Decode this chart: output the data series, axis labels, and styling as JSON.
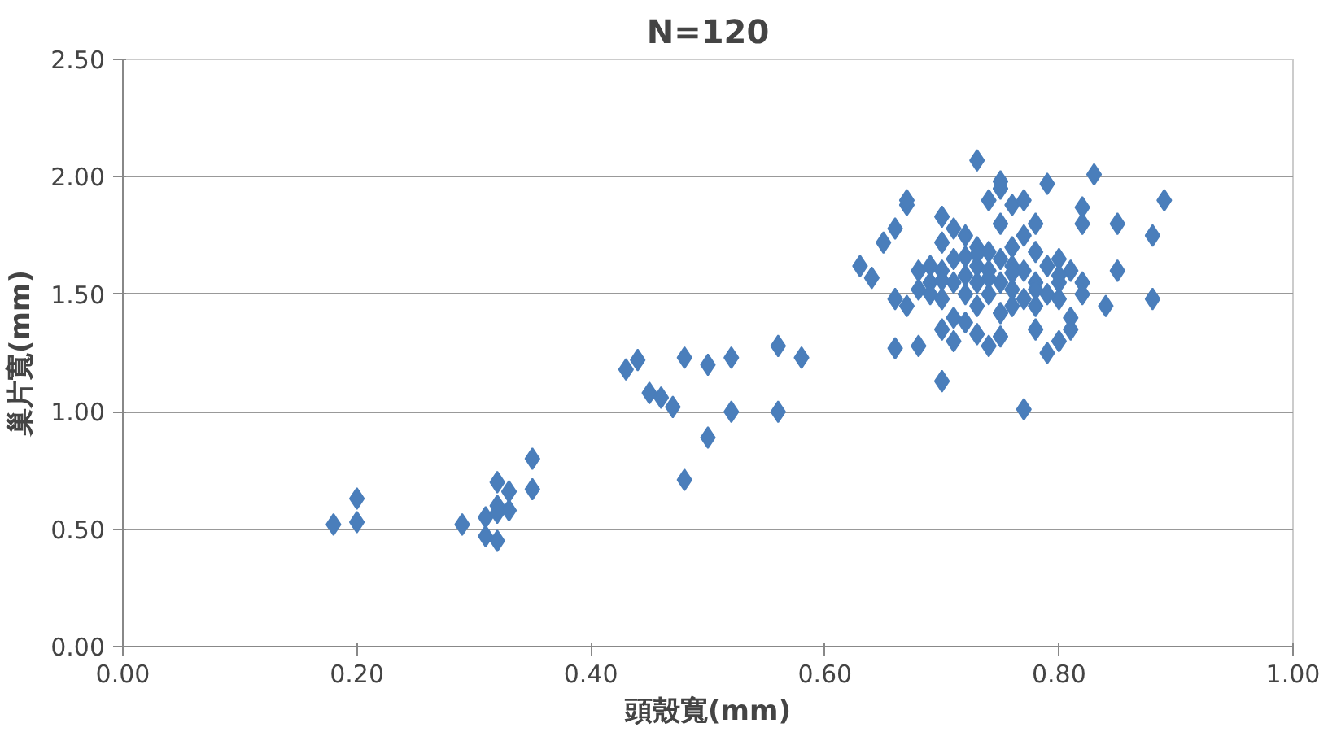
{
  "chart_data": {
    "type": "scatter",
    "title": "N=120",
    "xlabel": "頭殼寬(mm)",
    "ylabel": "巢片寬(mm)",
    "xlim": [
      0,
      1
    ],
    "ylim": [
      0,
      2.5
    ],
    "xticks": [
      {
        "value": 0,
        "label": "0.00"
      },
      {
        "value": 0.2,
        "label": "0.20"
      },
      {
        "value": 0.4,
        "label": "0.40"
      },
      {
        "value": 0.6,
        "label": "0.60"
      },
      {
        "value": 0.8,
        "label": "0.80"
      },
      {
        "value": 1,
        "label": "1.00"
      }
    ],
    "yticks": [
      {
        "value": 0,
        "label": "0.00"
      },
      {
        "value": 0.5,
        "label": "0.50"
      },
      {
        "value": 1,
        "label": "1.00"
      },
      {
        "value": 1.5,
        "label": "1.50"
      },
      {
        "value": 2,
        "label": "2.00"
      },
      {
        "value": 2.5,
        "label": "2.50"
      }
    ],
    "grid": "y",
    "marker": "diamond",
    "color": "#4a7ebb",
    "x": [
      0.18,
      0.2,
      0.2,
      0.29,
      0.31,
      0.32,
      0.31,
      0.32,
      0.32,
      0.33,
      0.33,
      0.35,
      0.35,
      0.32,
      0.43,
      0.44,
      0.45,
      0.46,
      0.47,
      0.48,
      0.5,
      0.52,
      0.48,
      0.5,
      0.52,
      0.56,
      0.58,
      0.56,
      0.63,
      0.64,
      0.65,
      0.66,
      0.67,
      0.67,
      0.66,
      0.66,
      0.68,
      0.67,
      0.68,
      0.68,
      0.69,
      0.69,
      0.7,
      0.7,
      0.7,
      0.7,
      0.7,
      0.7,
      0.71,
      0.71,
      0.71,
      0.71,
      0.72,
      0.72,
      0.72,
      0.72,
      0.73,
      0.73,
      0.73,
      0.73,
      0.73,
      0.73,
      0.74,
      0.74,
      0.74,
      0.74,
      0.75,
      0.75,
      0.75,
      0.75,
      0.75,
      0.75,
      0.75,
      0.76,
      0.76,
      0.76,
      0.76,
      0.77,
      0.77,
      0.77,
      0.77,
      0.77,
      0.78,
      0.78,
      0.78,
      0.78,
      0.79,
      0.79,
      0.79,
      0.79,
      0.8,
      0.8,
      0.8,
      0.81,
      0.81,
      0.81,
      0.82,
      0.82,
      0.82,
      0.82,
      0.83,
      0.84,
      0.85,
      0.85,
      0.88,
      0.88,
      0.89,
      0.78,
      0.8,
      0.74,
      0.76,
      0.71,
      0.69,
      0.72,
      0.74,
      0.76,
      0.78,
      0.8,
      0.7,
      0.73
    ],
    "values": [
      0.52,
      0.53,
      0.63,
      0.52,
      0.47,
      0.45,
      0.55,
      0.6,
      0.7,
      0.58,
      0.66,
      0.8,
      0.67,
      0.57,
      1.18,
      1.22,
      1.08,
      1.06,
      1.02,
      1.23,
      1.2,
      1.23,
      0.71,
      0.89,
      1.0,
      1.28,
      1.23,
      1.0,
      1.62,
      1.57,
      1.72,
      1.78,
      1.88,
      1.9,
      1.48,
      1.27,
      1.28,
      1.45,
      1.52,
      1.6,
      1.55,
      1.5,
      1.83,
      1.72,
      1.6,
      1.48,
      1.35,
      1.13,
      1.65,
      1.55,
      1.4,
      1.3,
      1.75,
      1.58,
      1.5,
      1.38,
      2.07,
      1.7,
      1.62,
      1.55,
      1.45,
      1.33,
      1.9,
      1.68,
      1.6,
      1.5,
      1.95,
      1.98,
      1.8,
      1.65,
      1.55,
      1.42,
      1.32,
      1.88,
      1.7,
      1.62,
      1.52,
      1.9,
      1.75,
      1.6,
      1.48,
      1.01,
      1.8,
      1.68,
      1.55,
      1.45,
      1.97,
      1.62,
      1.5,
      1.25,
      1.65,
      1.55,
      1.3,
      1.6,
      1.4,
      1.35,
      1.87,
      1.8,
      1.55,
      1.5,
      2.01,
      1.45,
      1.6,
      1.8,
      1.75,
      1.48,
      1.9,
      1.35,
      1.58,
      1.28,
      1.45,
      1.78,
      1.62,
      1.66,
      1.57,
      1.59,
      1.52,
      1.48,
      1.56,
      1.67
    ]
  }
}
